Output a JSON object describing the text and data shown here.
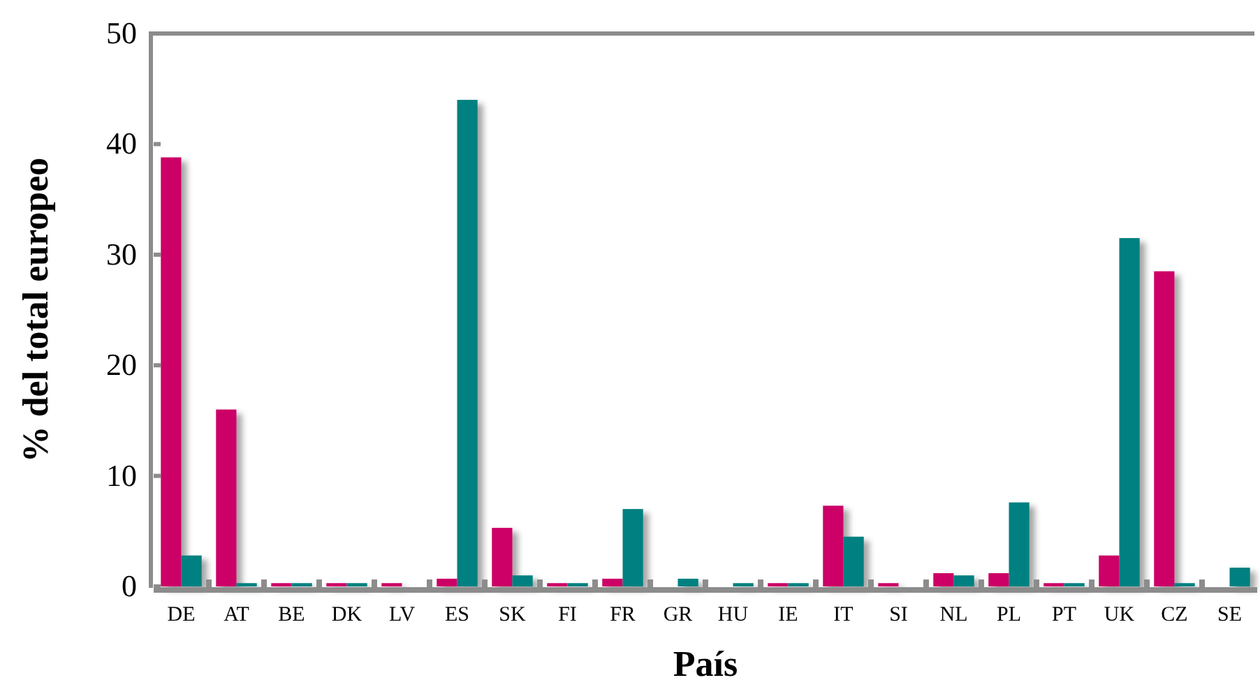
{
  "chart_data": {
    "type": "bar",
    "xlabel": "País",
    "ylabel": "% del total europeo",
    "categories": [
      "DE",
      "AT",
      "BE",
      "DK",
      "LV",
      "ES",
      "SK",
      "FI",
      "FR",
      "GR",
      "HU",
      "IE",
      "IT",
      "SI",
      "NL",
      "PL",
      "PT",
      "UK",
      "CZ",
      "SE"
    ],
    "series": [
      {
        "color": "#cc0066",
        "values": [
          38.8,
          16,
          0.3,
          0.3,
          0.3,
          0.7,
          5.3,
          0.3,
          0.7,
          0,
          0,
          0.3,
          7.3,
          0.3,
          1.2,
          1.2,
          0.3,
          2.8,
          28.5,
          0
        ]
      },
      {
        "color": "#008080",
        "values": [
          2.8,
          0.3,
          0.3,
          0.3,
          0,
          44,
          1,
          0.3,
          7,
          0.7,
          0.3,
          0.3,
          4.5,
          0,
          1,
          7.6,
          0.3,
          31.5,
          0.3,
          1.7
        ]
      }
    ],
    "ylim": [
      0,
      50
    ],
    "yticks": [
      0,
      10,
      20,
      30,
      40,
      50
    ],
    "grid": false
  }
}
